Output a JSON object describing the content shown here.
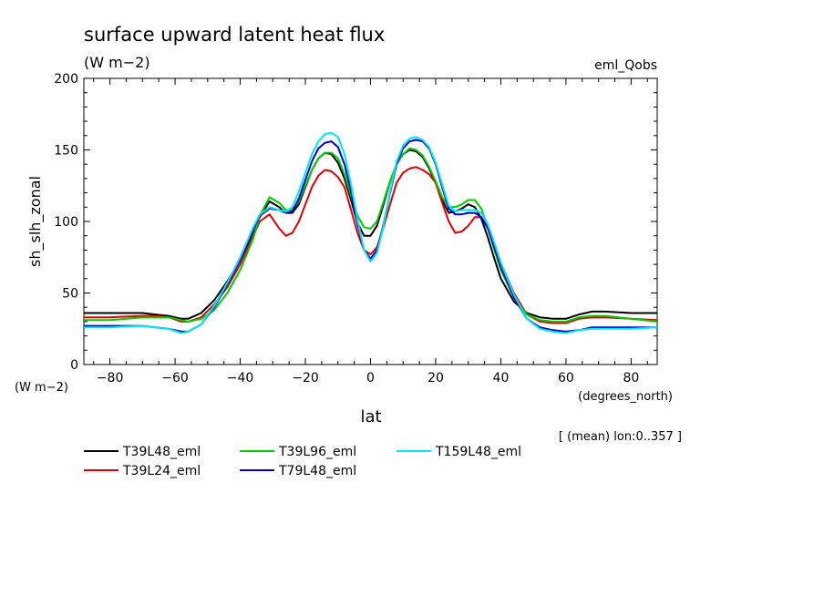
{
  "chart_data": {
    "type": "line",
    "title": "surface upward latent heat flux",
    "units": "(W m−2)",
    "experiment": "eml_Qobs",
    "ylabel": "sh_slh_zonal",
    "yunits": "(W m−2)",
    "xlabel": "lat",
    "xunits": "(degrees_north)",
    "note": "[ (mean) lon:0..357 ]",
    "xlim": [
      -88,
      88
    ],
    "ylim": [
      0,
      200
    ],
    "x_ticks": [
      -80,
      -60,
      -40,
      -20,
      0,
      20,
      40,
      60,
      80
    ],
    "y_ticks": [
      0,
      50,
      100,
      150,
      200
    ],
    "grid": false,
    "legend_position": "below",
    "x": [
      -88,
      -80,
      -70,
      -66,
      -62,
      -58,
      -56,
      -52,
      -48,
      -44,
      -40,
      -36,
      -34,
      -31,
      -28,
      -26,
      -24,
      -22,
      -20,
      -18,
      -16,
      -14,
      -12,
      -10,
      -8,
      -6,
      -4,
      -2,
      0,
      2,
      4,
      6,
      8,
      10,
      12,
      14,
      16,
      18,
      20,
      22,
      24,
      26,
      28,
      30,
      32,
      34,
      36,
      38,
      40,
      44,
      48,
      52,
      56,
      60,
      64,
      68,
      72,
      80,
      88
    ],
    "series": [
      {
        "name": "T39L48_eml",
        "color": "#000000",
        "values": [
          36,
          36,
          36,
          35,
          34,
          32,
          32,
          36,
          45,
          58,
          73,
          92,
          103,
          114,
          110,
          106,
          106,
          112,
          124,
          136,
          144,
          148,
          147,
          141,
          130,
          115,
          99,
          90,
          90,
          97,
          112,
          128,
          140,
          147,
          150,
          149,
          145,
          137,
          127,
          115,
          106,
          107,
          109,
          112,
          110,
          102,
          89,
          74,
          60,
          44,
          36,
          33,
          32,
          32,
          35,
          37,
          37,
          36,
          36
        ]
      },
      {
        "name": "T39L24_eml",
        "color": "#e00000",
        "values": [
          33,
          33,
          34,
          34,
          33,
          30,
          30,
          33,
          42,
          54,
          70,
          90,
          100,
          105,
          95,
          90,
          92,
          100,
          112,
          124,
          132,
          136,
          135,
          131,
          124,
          108,
          92,
          80,
          77,
          82,
          96,
          112,
          127,
          134,
          137,
          138,
          136,
          133,
          127,
          113,
          100,
          92,
          93,
          97,
          103,
          103,
          96,
          85,
          71,
          50,
          35,
          30,
          29,
          29,
          32,
          33,
          33,
          32,
          31
        ]
      },
      {
        "name": "T39L96_eml",
        "color": "#00cc00",
        "values": [
          31,
          31,
          33,
          33,
          33,
          31,
          30,
          32,
          38,
          50,
          66,
          88,
          104,
          117,
          113,
          108,
          108,
          114,
          125,
          136,
          144,
          148,
          148,
          144,
          133,
          118,
          104,
          96,
          95,
          100,
          114,
          128,
          140,
          147,
          151,
          150,
          146,
          138,
          128,
          117,
          110,
          110,
          112,
          115,
          115,
          109,
          96,
          80,
          66,
          47,
          35,
          31,
          30,
          30,
          33,
          34,
          34,
          32,
          30
        ]
      },
      {
        "name": "T79L48_eml",
        "color": "#0000cc",
        "values": [
          27,
          27,
          27,
          26,
          25,
          23,
          23,
          28,
          40,
          56,
          73,
          94,
          104,
          109,
          108,
          106,
          107,
          116,
          129,
          142,
          151,
          155,
          156,
          152,
          140,
          121,
          98,
          80,
          74,
          80,
          98,
          120,
          140,
          151,
          156,
          157,
          156,
          151,
          140,
          124,
          109,
          105,
          105,
          106,
          106,
          103,
          95,
          82,
          68,
          47,
          32,
          26,
          24,
          23,
          24,
          26,
          26,
          26,
          26
        ]
      },
      {
        "name": "T159L48_eml",
        "color": "#00e8f0",
        "values": [
          26,
          26,
          27,
          26,
          25,
          22,
          23,
          28,
          41,
          57,
          75,
          96,
          105,
          110,
          108,
          107,
          110,
          121,
          134,
          147,
          156,
          161,
          162,
          159,
          147,
          126,
          101,
          80,
          72,
          78,
          97,
          121,
          142,
          153,
          158,
          159,
          157,
          152,
          141,
          126,
          111,
          107,
          108,
          108,
          108,
          106,
          98,
          85,
          71,
          49,
          32,
          25,
          23,
          22,
          24,
          25,
          25,
          25,
          26
        ]
      }
    ]
  }
}
